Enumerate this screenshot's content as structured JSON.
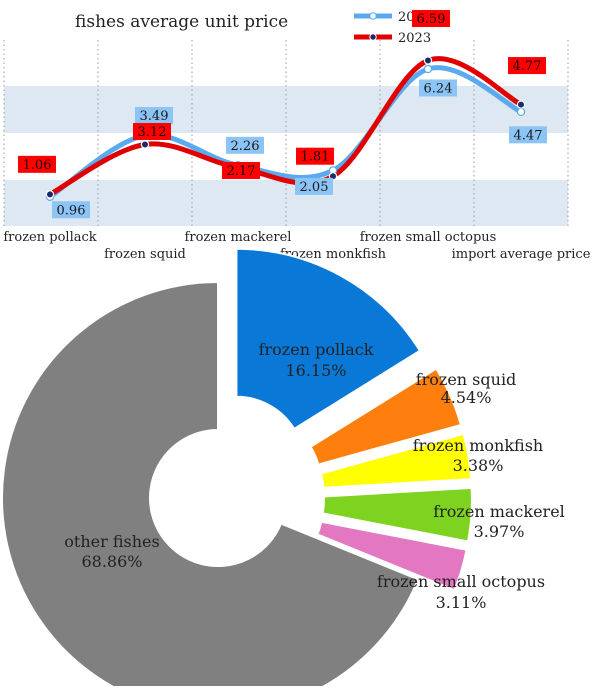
{
  "chart_data": [
    {
      "type": "line",
      "title": "fishes average unit price",
      "categories": [
        "frozen pollack",
        "frozen squid",
        "frozen mackerel",
        "frozen monkfish",
        "frozen small octopus",
        "import average price"
      ],
      "series": [
        {
          "name": "2024",
          "values": [
            0.96,
            3.49,
            2.26,
            2.05,
            6.24,
            4.47
          ],
          "color": "#5aaaf0",
          "label_bg": "#8cc4f5"
        },
        {
          "name": "2023",
          "values": [
            1.06,
            3.12,
            2.17,
            1.81,
            6.59,
            4.77
          ],
          "color": "#e00000",
          "label_bg": "#ff0000"
        }
      ],
      "legend_position": "top-right",
      "band_color": "#dde8f3",
      "grid": "vertical dotted"
    },
    {
      "type": "pie",
      "subtype": "donut (exploded slices)",
      "slices": [
        {
          "label": "frozen pollack",
          "value": 16.15,
          "value_label": "16.15%",
          "color": "#0a78d7"
        },
        {
          "label": "frozen squid",
          "value": 4.54,
          "value_label": "4.54%",
          "color": "#ff7f0e"
        },
        {
          "label": "frozen monkfish",
          "value": 3.38,
          "value_label": "3.38%",
          "color": "#ffff00"
        },
        {
          "label": "frozen mackerel",
          "value": 3.97,
          "value_label": "3.97%",
          "color": "#7ed321"
        },
        {
          "label": "frozen small octopus",
          "value": 3.11,
          "value_label": "3.11%",
          "color": "#e377c2"
        },
        {
          "label": "other fishes",
          "value": 68.86,
          "value_label": "68.86%",
          "color": "#808080"
        }
      ]
    }
  ]
}
